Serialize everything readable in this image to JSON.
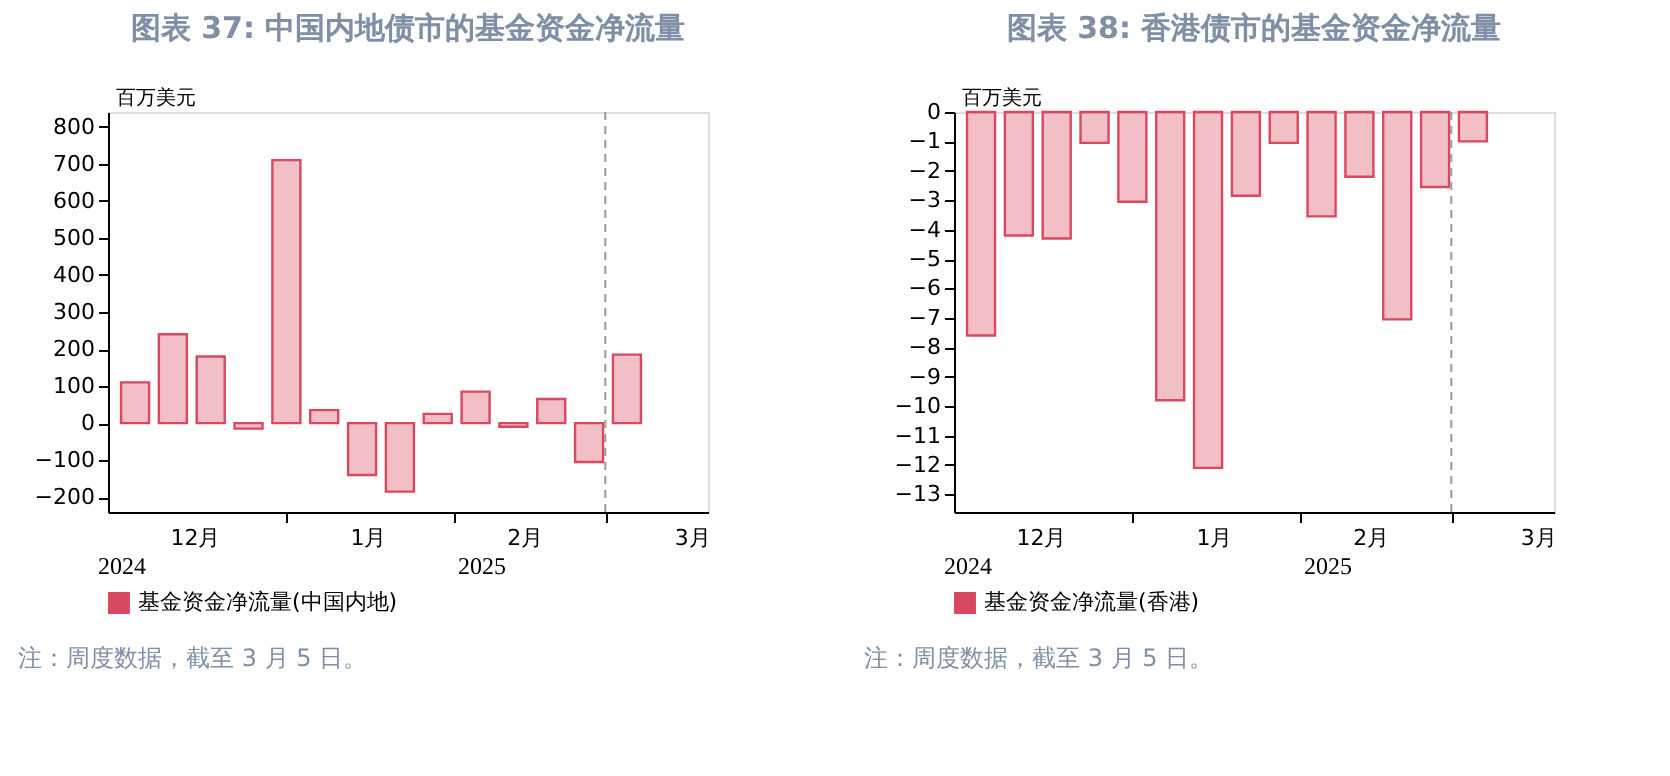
{
  "chart_data": [
    {
      "type": "bar",
      "title": "图表 37: 中国内地债市的基金资金净流量",
      "ylabel": "百万美元",
      "x": [
        "2024-12-04",
        "2024-12-11",
        "2024-12-18",
        "2024-12-25",
        "2025-01-01",
        "2025-01-08",
        "2025-01-15",
        "2025-01-22",
        "2025-01-29",
        "2025-02-05",
        "2025-02-12",
        "2025-02-19",
        "2025-02-26",
        "2025-03-05"
      ],
      "series": [
        {
          "name": "基金资金净流量(中国内地)",
          "color": "#d9485f",
          "values": [
            110,
            240,
            180,
            -15,
            710,
            35,
            -140,
            -185,
            25,
            85,
            -10,
            65,
            -105,
            185
          ]
        }
      ],
      "xlim": [
        "2024-11-29",
        "2025-03-20"
      ],
      "xticks": [
        {
          "value": "2024-12-15",
          "label": "12月"
        },
        {
          "value": "2025-01-01",
          "label": null
        },
        {
          "value": "2025-01-16",
          "label": "1月"
        },
        {
          "value": "2025-02-01",
          "label": null
        },
        {
          "value": "2025-02-14",
          "label": "2月"
        },
        {
          "value": "2025-03-01",
          "label": null
        },
        {
          "value": "2025-03-17",
          "label": "3月"
        }
      ],
      "ylim": [
        -240,
        840
      ],
      "yticks": [
        -200,
        -100,
        0,
        100,
        200,
        300,
        400,
        500,
        600,
        700,
        800
      ],
      "ref_lines": [
        {
          "axis": "x",
          "value": "2025-03-01",
          "color": "#999999",
          "line_style": "dashed"
        }
      ],
      "legend": "bottom",
      "grid": false,
      "annotations": [
        "2024",
        "2025",
        "注：周度数据，截至 3 月 5 日。"
      ]
    },
    {
      "type": "bar",
      "title": "图表 38: 香港债市的基金资金净流量",
      "ylabel": "百万美元",
      "x": [
        "2024-12-04",
        "2024-12-11",
        "2024-12-18",
        "2024-12-25",
        "2025-01-01",
        "2025-01-08",
        "2025-01-15",
        "2025-01-22",
        "2025-01-29",
        "2025-02-05",
        "2025-02-12",
        "2025-02-19",
        "2025-02-26",
        "2025-03-05"
      ],
      "series": [
        {
          "name": "基金资金净流量(香港)",
          "color": "#d9485f",
          "values": [
            -7.6,
            -4.2,
            -4.3,
            -1.05,
            -3.05,
            -9.8,
            -12.1,
            -2.85,
            -1.05,
            -3.55,
            -2.2,
            -7.05,
            -2.55,
            -1.0
          ]
        }
      ],
      "xlim": [
        "2024-11-29",
        "2025-03-20"
      ],
      "xticks": [
        {
          "value": "2024-12-15",
          "label": "12月"
        },
        {
          "value": "2025-01-01",
          "label": null
        },
        {
          "value": "2025-01-16",
          "label": "1月"
        },
        {
          "value": "2025-02-01",
          "label": null
        },
        {
          "value": "2025-02-14",
          "label": "2月"
        },
        {
          "value": "2025-03-01",
          "label": null
        },
        {
          "value": "2025-03-17",
          "label": "3月"
        }
      ],
      "ylim": [
        -13.6,
        0
      ],
      "yticks": [
        -13,
        -12,
        -11,
        -10,
        -9,
        -8,
        -7,
        -6,
        -5,
        -4,
        -3,
        -2,
        -1,
        0
      ],
      "ref_lines": [
        {
          "axis": "x",
          "value": "2025-03-01",
          "color": "#999999",
          "line_style": "dashed"
        }
      ],
      "legend": "bottom",
      "grid": false,
      "annotations": [
        "2024",
        "2025",
        "注：周度数据，截至 3 月 5 日。"
      ]
    }
  ]
}
